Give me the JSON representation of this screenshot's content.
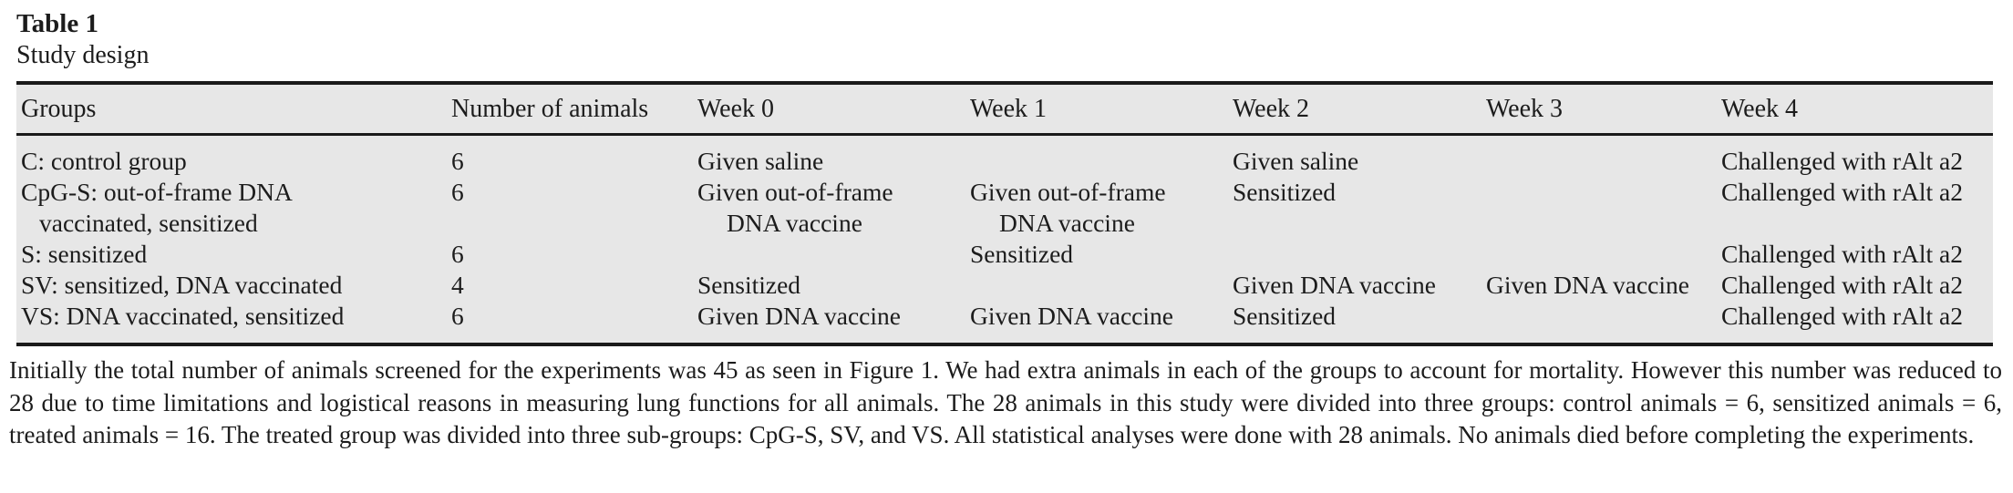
{
  "colors": {
    "paper_background": "#ffffff",
    "text": "#1c1c1c",
    "table_background": "#e7e7e7",
    "rule": "#1a1a1a"
  },
  "caption": {
    "table_number": "Table 1",
    "table_title": "Study design"
  },
  "table": {
    "columns": [
      "Groups",
      "Number of animals",
      "Week 0",
      "Week 1",
      "Week 2",
      "Week 3",
      "Week 4"
    ],
    "rows": [
      [
        "C: control group",
        "6",
        "Given saline",
        "",
        "Given saline",
        "",
        "Challenged with rAlt a2"
      ],
      [
        "CpG-S: out-of-frame DNA\nvaccinated, sensitized",
        "6",
        "Given out-of-frame\nDNA vaccine",
        "Given out-of-frame\nDNA vaccine",
        "Sensitized",
        "",
        "Challenged with rAlt a2"
      ],
      [
        "S: sensitized",
        "6",
        "",
        "Sensitized",
        "",
        "",
        "Challenged with rAlt a2"
      ],
      [
        "SV: sensitized, DNA vaccinated",
        "4",
        "Sensitized",
        "",
        "Given DNA vaccine",
        "Given DNA vaccine",
        "Challenged with rAlt a2"
      ],
      [
        "VS: DNA vaccinated, sensitized",
        "6",
        "Given DNA vaccine",
        "Given DNA vaccine",
        "Sensitized",
        "",
        "Challenged with rAlt a2"
      ]
    ]
  },
  "footnote": "Initially the total number of animals screened for the experiments was 45 as seen in Figure 1. We had extra animals in each of the groups to account for mortality. However this number was reduced to 28 due to time limitations and logistical reasons in measuring lung functions for all animals. The 28 animals in this study were divided into three groups: control animals = 6, sensitized animals = 6, treated animals = 16. The treated group was divided into three sub-groups: CpG-S, SV, and VS. All statistical analyses were done with 28 animals. No animals died before completing the experiments."
}
